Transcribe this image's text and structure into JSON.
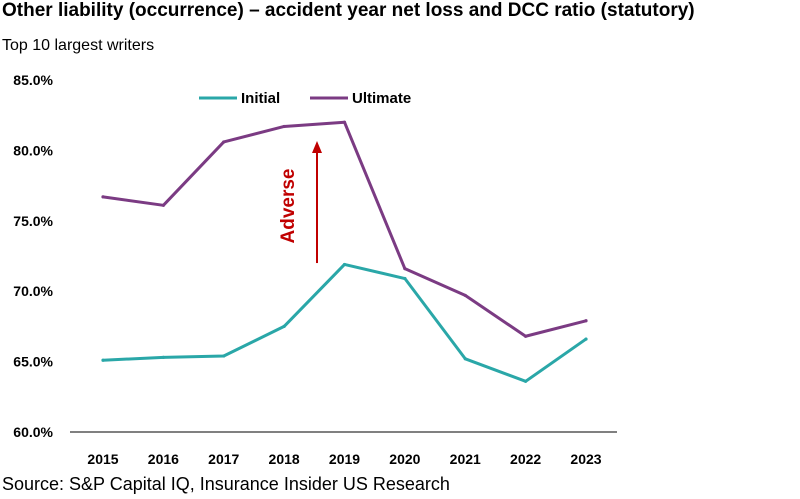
{
  "chart_data": {
    "type": "line",
    "title": "Other liability (occurrence) – accident year net loss and DCC ratio (statutory)",
    "subtitle": "Top 10 largest writers",
    "source": "Source: S&P Capital IQ, Insurance Insider US Research",
    "categories": [
      "2015",
      "2016",
      "2017",
      "2018",
      "2019",
      "2020",
      "2021",
      "2022",
      "2023"
    ],
    "series": [
      {
        "name": "Initial",
        "color": "#2aa7a8",
        "values": [
          65.1,
          65.3,
          65.4,
          67.5,
          71.9,
          70.9,
          65.2,
          63.6,
          66.6
        ]
      },
      {
        "name": "Ultimate",
        "color": "#7b3b83",
        "values": [
          76.7,
          76.1,
          80.6,
          81.7,
          82.0,
          71.6,
          69.7,
          66.8,
          67.9
        ]
      }
    ],
    "ylim": [
      60,
      85
    ],
    "yticks": [
      60,
      65,
      70,
      75,
      80,
      85
    ],
    "ytick_labels": [
      "60.0%",
      "65.0%",
      "70.0%",
      "75.0%",
      "80.0%",
      "85.0%"
    ],
    "xlabel": "",
    "ylabel": "",
    "grid": false,
    "legend_position": "top-center",
    "annotation": {
      "text": "Adverse",
      "color": "#c00000",
      "category": "2018.5",
      "from_value": 72.0,
      "to_value": 80.6
    }
  }
}
